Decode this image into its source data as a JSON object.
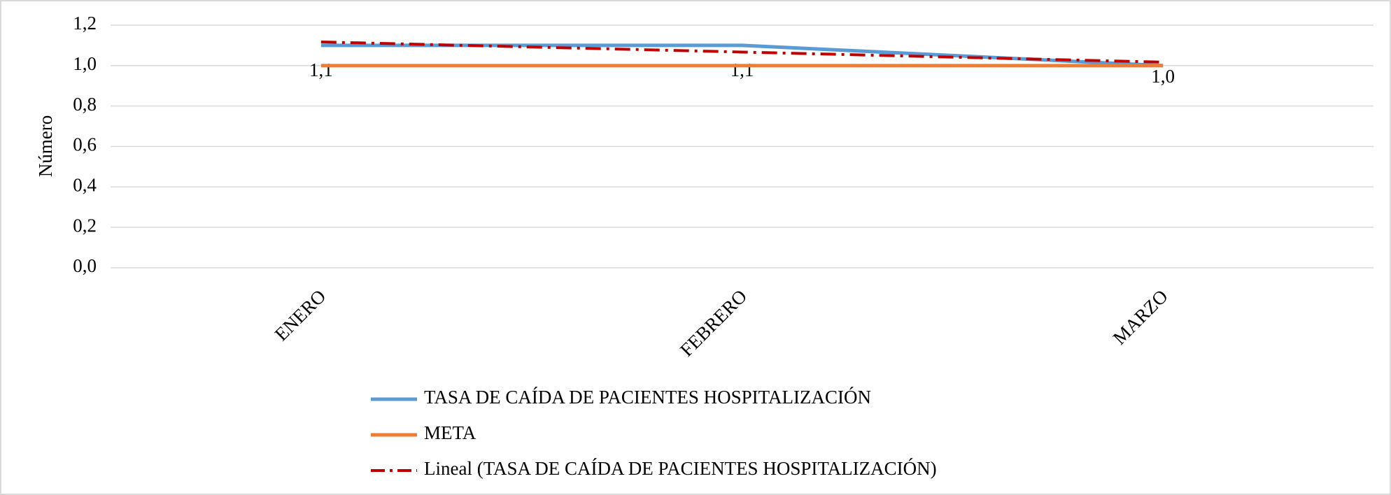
{
  "chart_data": {
    "type": "line",
    "y_label": "Número",
    "categories": [
      "ENERO",
      "FEBRERO",
      "MARZO"
    ],
    "series": [
      {
        "name": "TASA DE CAÍDA DE PACIENTES HOSPITALIZACIÓN",
        "color": "#5b9bd5",
        "values": [
          1.1,
          1.1,
          1.0
        ],
        "value_labels": [
          "1,1",
          "1,1",
          "1,0"
        ]
      },
      {
        "name": "META",
        "color": "#ed7d31",
        "values": [
          1.0,
          1.0,
          1.0
        ]
      },
      {
        "name": "Lineal (TASA DE CAÍDA DE PACIENTES HOSPITALIZACIÓN)",
        "color": "#c00000",
        "dash": "dash-dot",
        "values": [
          1.117,
          1.067,
          1.017
        ]
      }
    ],
    "ylim": [
      0,
      1.2
    ],
    "yticks": [
      {
        "value": 0,
        "label": "0,0"
      },
      {
        "value": 0.2,
        "label": "0,2"
      },
      {
        "value": 0.4,
        "label": "0,4"
      },
      {
        "value": 0.6,
        "label": "0,6"
      },
      {
        "value": 0.8,
        "label": "0,8"
      },
      {
        "value": 1.0,
        "label": "1,0"
      },
      {
        "value": 1.2,
        "label": "1,2"
      }
    ],
    "grid": true,
    "legend": "bottom"
  }
}
